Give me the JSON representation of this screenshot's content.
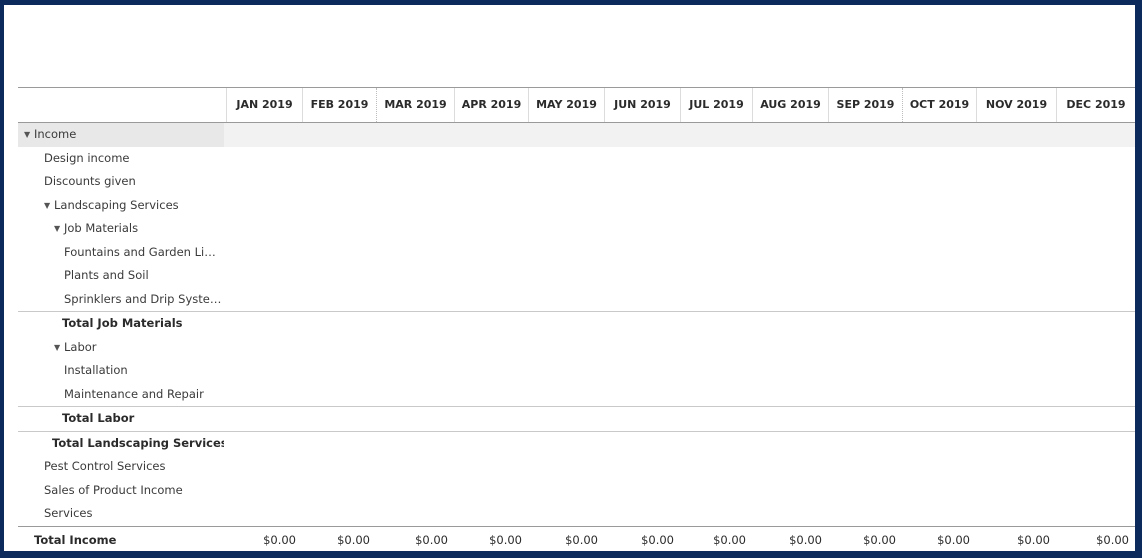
{
  "columns": [
    "JAN 2019",
    "FEB 2019",
    "MAR 2019",
    "APR 2019",
    "MAY 2019",
    "JUN 2019",
    "JUL 2019",
    "AUG 2019",
    "SEP 2019",
    "OCT 2019",
    "NOV 2019",
    "DEC 2019"
  ],
  "rows": [
    {
      "label": "Income",
      "level": 0,
      "caret": true,
      "type": "section"
    },
    {
      "label": "Design income",
      "level": 1
    },
    {
      "label": "Discounts given",
      "level": 1
    },
    {
      "label": "Landscaping Services",
      "level": 1,
      "caret": true
    },
    {
      "label": "Job Materials",
      "level": 2,
      "caret": true
    },
    {
      "label": "Fountains and Garden Li…",
      "level": 3
    },
    {
      "label": "Plants and Soil",
      "level": 3
    },
    {
      "label": "Sprinklers and Drip Syste…",
      "level": 3
    },
    {
      "label": "Total Job Materials",
      "level": 3,
      "type": "total"
    },
    {
      "label": "Labor",
      "level": 2,
      "caret": true
    },
    {
      "label": "Installation",
      "level": 3
    },
    {
      "label": "Maintenance and Repair",
      "level": 3
    },
    {
      "label": "Total Labor",
      "level": 3,
      "type": "total"
    },
    {
      "label": "Total Landscaping Services",
      "level": 2,
      "type": "total"
    },
    {
      "label": "Pest Control Services",
      "level": 1
    },
    {
      "label": "Sales of Product Income",
      "level": 1
    },
    {
      "label": "Services",
      "level": 1
    }
  ],
  "total_income": {
    "label": "Total Income",
    "values": [
      "$0.00",
      "$0.00",
      "$0.00",
      "$0.00",
      "$0.00",
      "$0.00",
      "$0.00",
      "$0.00",
      "$0.00",
      "$0.00",
      "$0.00",
      "$0.00"
    ]
  },
  "icons": {
    "caret": "caret-down-icon"
  }
}
